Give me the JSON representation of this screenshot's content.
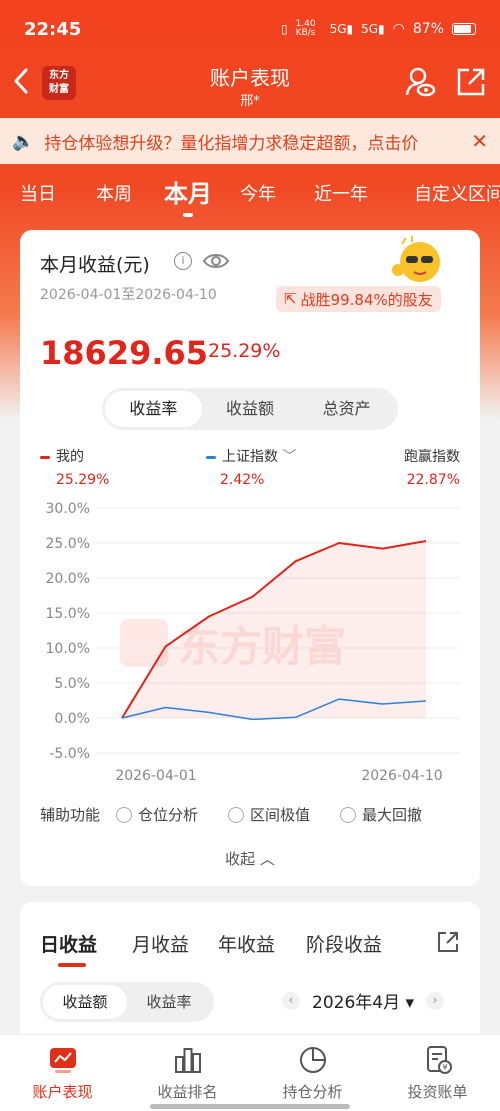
{
  "status_bar": {
    "time": "22:45",
    "net_speed": "1.40 KB/s",
    "signal1": "5G",
    "signal2": "5G",
    "battery": "87%"
  },
  "nav": {
    "logo_text": "东方\n财富",
    "title": "账户表现",
    "subtitle": "邢*"
  },
  "notice": {
    "text": "持仓体验想升级？量化指增力求稳定超额，点击价"
  },
  "period_tabs": [
    "当日",
    "本周",
    "本月",
    "今年",
    "近一年",
    "自定义区间"
  ],
  "summary": {
    "title": "本月收益(元)",
    "date_range": "2026-04-01至2026-04-10",
    "beat_text": "战胜99.84%的股友",
    "amount": "18629.65",
    "return_pct": "25.29%"
  },
  "metric_tabs": [
    "收益率",
    "收益额",
    "总资产"
  ],
  "legend": [
    {
      "name": "我的",
      "value": "25.29%",
      "color": "#e0251b"
    },
    {
      "name": "上证指数",
      "value": "2.42%",
      "color": "#2f80d6"
    },
    {
      "name": "跑赢指数",
      "value": "22.87%"
    }
  ],
  "watermark": "东方财富",
  "chart_data": {
    "type": "line",
    "x": [
      "2026-04-01",
      "2026-04-02",
      "2026-04-03",
      "2026-04-06",
      "2026-04-07",
      "2026-04-08",
      "2026-04-09",
      "2026-04-10"
    ],
    "x_tick_labels": [
      "2026-04-01",
      "2026-04-10"
    ],
    "y_ticks": [
      "30.0%",
      "25.0%",
      "20.0%",
      "15.0%",
      "10.0%",
      "5.0%",
      "0.0%",
      "-5.0%"
    ],
    "ylim": [
      -5,
      30
    ],
    "grid": true,
    "series": [
      {
        "name": "我的",
        "color": "#e0251b",
        "values": [
          0.0,
          10.2,
          14.5,
          17.3,
          22.4,
          25.0,
          24.2,
          25.29
        ]
      },
      {
        "name": "上证指数",
        "color": "#2f80d6",
        "values": [
          0.0,
          1.5,
          0.8,
          -0.2,
          0.1,
          2.7,
          2.0,
          2.42
        ]
      }
    ]
  },
  "aux": {
    "label": "辅助功能",
    "options": [
      "仓位分析",
      "区间极值",
      "最大回撤"
    ]
  },
  "collapse_label": "收起 ︿",
  "income_tabs": [
    "日收益",
    "月收益",
    "年收益",
    "阶段收益"
  ],
  "income_seg": [
    "收益额",
    "收益率"
  ],
  "month": {
    "label": "2026年4月"
  },
  "bottom_nav": [
    "账户表现",
    "收益排名",
    "持仓分析",
    "投资账单"
  ]
}
